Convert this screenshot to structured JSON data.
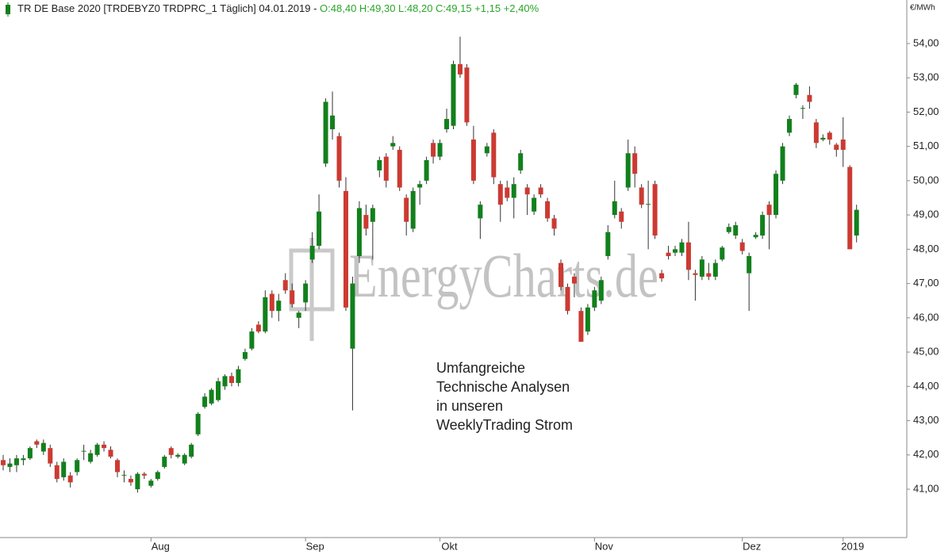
{
  "chart_data": {
    "type": "candlestick",
    "title": "TR DE Base 2020 [TRDEBYZ0 TRDPRC_1 Täglich] 04.01.2019 -",
    "subtitle": "O:48,40 H:49,30 L:48,20 C:49,15 +1,15 +2,40%",
    "y_unit": "€/MWh",
    "watermark": "EnergyCharts.de",
    "annotation": [
      "Umfangreiche",
      "Technische Analysen",
      "in unseren",
      "WeeklyTrading Strom"
    ],
    "categories": [
      null,
      null,
      null,
      null,
      null,
      null,
      null,
      null,
      null,
      null,
      null,
      null,
      null,
      null,
      null,
      null,
      null,
      null,
      null,
      null,
      null,
      null,
      "Aug",
      null,
      null,
      null,
      null,
      null,
      null,
      null,
      null,
      null,
      null,
      null,
      null,
      null,
      null,
      null,
      null,
      null,
      null,
      null,
      null,
      null,
      null,
      "Sep",
      null,
      null,
      null,
      null,
      null,
      null,
      null,
      null,
      null,
      null,
      null,
      null,
      null,
      null,
      null,
      null,
      null,
      null,
      null,
      "Okt",
      null,
      null,
      null,
      null,
      null,
      null,
      null,
      null,
      null,
      null,
      null,
      null,
      null,
      null,
      null,
      null,
      null,
      null,
      null,
      null,
      null,
      null,
      "Nov",
      null,
      null,
      null,
      null,
      null,
      null,
      null,
      null,
      null,
      null,
      null,
      null,
      null,
      null,
      null,
      null,
      null,
      null,
      null,
      null,
      null,
      "Dez",
      null,
      null,
      null,
      null,
      null,
      null,
      null,
      null,
      null,
      null,
      null,
      null,
      null,
      null,
      "2019",
      null,
      null
    ],
    "series": [
      {
        "name": "TR DE Base 2020",
        "up_color": "#12801c",
        "down_color": "#cc3a32",
        "open": [
          41.85,
          41.65,
          41.7,
          41.85,
          41.9,
          42.4,
          42.1,
          42.2,
          41.7,
          41.35,
          41.4,
          41.5,
          42.1,
          41.8,
          42.0,
          42.3,
          42.15,
          41.85,
          41.4,
          41.3,
          41.0,
          41.45,
          41.1,
          41.3,
          41.65,
          42.2,
          41.95,
          41.75,
          41.95,
          42.6,
          43.4,
          43.5,
          43.6,
          44.0,
          44.3,
          44.1,
          44.8,
          45.1,
          45.8,
          45.6,
          46.7,
          46.2,
          47.1,
          46.8,
          46.0,
          46.45,
          47.7,
          48.1,
          50.5,
          51.5,
          51.3,
          49.7,
          45.1,
          47.8,
          49.0,
          48.8,
          50.3,
          50.7,
          51.0,
          50.9,
          49.5,
          48.6,
          49.8,
          50.0,
          51.1,
          50.7,
          51.5,
          51.6,
          53.4,
          53.3,
          51.2,
          48.9,
          50.8,
          51.4,
          49.9,
          49.8,
          49.5,
          50.3,
          49.8,
          49.1,
          49.8,
          49.4,
          48.9,
          47.6,
          46.9,
          47.2,
          46.2,
          45.6,
          46.3,
          46.5,
          47.8,
          49.0,
          49.1,
          49.8,
          50.8,
          49.8,
          49.3,
          49.9,
          47.3,
          47.9,
          47.9,
          47.9,
          48.2,
          47.3,
          47.2,
          47.3,
          47.2,
          47.7,
          48.5,
          48.4,
          48.2,
          47.3,
          48.35,
          48.4,
          49.3,
          49.0,
          50.0,
          51.4,
          52.5,
          52.1,
          52.5,
          51.7,
          51.2,
          51.4,
          51.05,
          51.2,
          50.4,
          48.4
        ],
        "high": [
          42.0,
          41.9,
          42.0,
          42.0,
          42.25,
          42.45,
          42.45,
          42.3,
          41.8,
          41.9,
          41.5,
          41.9,
          42.3,
          42.15,
          42.35,
          42.4,
          42.25,
          41.9,
          41.55,
          41.4,
          41.5,
          41.5,
          41.3,
          41.55,
          42.0,
          42.25,
          42.05,
          42.05,
          42.35,
          43.25,
          43.8,
          43.95,
          44.25,
          44.35,
          44.4,
          44.6,
          45.1,
          45.7,
          45.9,
          46.8,
          46.8,
          46.7,
          47.3,
          47.0,
          46.2,
          47.1,
          48.5,
          49.6,
          52.4,
          52.6,
          51.4,
          50.1,
          47.2,
          49.4,
          49.3,
          49.3,
          50.7,
          50.8,
          51.3,
          51.0,
          49.6,
          49.8,
          50.0,
          50.7,
          51.2,
          51.2,
          52.1,
          53.5,
          54.2,
          53.4,
          51.6,
          49.4,
          51.1,
          51.5,
          50.0,
          50.0,
          50.1,
          50.9,
          49.9,
          49.6,
          49.9,
          49.5,
          49.0,
          47.7,
          47.0,
          47.3,
          46.3,
          46.4,
          46.9,
          47.2,
          48.7,
          50.0,
          49.2,
          51.2,
          51.0,
          49.9,
          50.0,
          50.0,
          47.4,
          48.1,
          48.1,
          48.3,
          48.8,
          47.4,
          47.8,
          47.6,
          47.7,
          48.1,
          48.75,
          48.8,
          48.3,
          47.9,
          48.5,
          49.1,
          49.4,
          50.3,
          51.1,
          51.9,
          52.85,
          52.2,
          52.75,
          51.8,
          51.35,
          51.45,
          51.1,
          51.85,
          50.45,
          49.3
        ],
        "low": [
          41.55,
          41.5,
          41.5,
          41.7,
          41.85,
          42.2,
          42.0,
          41.65,
          41.2,
          41.25,
          41.05,
          41.4,
          41.85,
          41.75,
          41.95,
          42.1,
          41.9,
          41.35,
          41.2,
          41.1,
          40.9,
          41.3,
          41.05,
          41.25,
          41.6,
          41.9,
          41.9,
          41.7,
          41.9,
          42.55,
          43.35,
          43.45,
          43.55,
          43.9,
          44.0,
          44.0,
          44.75,
          45.05,
          45.55,
          45.55,
          46.0,
          45.9,
          46.7,
          46.3,
          45.7,
          46.2,
          47.6,
          48.0,
          50.4,
          51.2,
          49.8,
          46.2,
          43.3,
          47.6,
          48.4,
          47.7,
          50.1,
          49.8,
          50.9,
          49.7,
          48.4,
          48.5,
          49.3,
          49.9,
          50.5,
          50.6,
          51.4,
          51.5,
          53.0,
          51.6,
          49.9,
          48.3,
          50.7,
          49.9,
          48.8,
          49.4,
          48.9,
          50.2,
          49.0,
          49.0,
          49.5,
          48.8,
          48.4,
          46.8,
          46.1,
          46.6,
          45.3,
          45.5,
          46.2,
          46.4,
          47.7,
          48.9,
          48.6,
          49.7,
          49.8,
          49.2,
          48.0,
          48.3,
          47.05,
          47.7,
          47.8,
          47.8,
          47.1,
          46.5,
          47.1,
          47.1,
          47.1,
          47.65,
          48.45,
          48.3,
          47.85,
          46.2,
          48.3,
          48.3,
          48.0,
          48.9,
          49.9,
          51.3,
          52.4,
          51.8,
          52.1,
          50.95,
          51.15,
          51.05,
          50.7,
          50.4,
          48.0,
          48.2
        ],
        "close": [
          41.7,
          41.75,
          41.9,
          41.9,
          42.2,
          42.3,
          42.35,
          41.75,
          41.3,
          41.8,
          41.2,
          41.85,
          42.12,
          42.05,
          42.3,
          42.2,
          41.95,
          41.5,
          41.42,
          41.2,
          41.45,
          41.4,
          41.25,
          41.5,
          41.95,
          42.0,
          42.0,
          42.0,
          42.3,
          43.2,
          43.7,
          43.9,
          44.15,
          44.3,
          44.1,
          44.5,
          45.0,
          45.6,
          45.6,
          46.6,
          46.2,
          46.5,
          46.8,
          46.4,
          46.15,
          47.0,
          48.1,
          49.1,
          52.3,
          51.9,
          50.0,
          46.3,
          47.0,
          49.2,
          48.6,
          49.2,
          50.6,
          50.0,
          51.1,
          49.8,
          48.8,
          49.7,
          49.9,
          50.6,
          50.7,
          51.1,
          51.8,
          53.4,
          53.1,
          51.7,
          50.0,
          49.3,
          51.0,
          50.1,
          49.3,
          49.5,
          49.9,
          50.8,
          49.6,
          49.5,
          49.6,
          48.9,
          48.6,
          46.9,
          46.2,
          47.0,
          45.3,
          46.3,
          46.8,
          47.1,
          48.5,
          49.4,
          48.8,
          50.8,
          50.2,
          49.3,
          49.32,
          48.4,
          47.15,
          47.8,
          48.0,
          48.2,
          47.4,
          47.25,
          47.7,
          47.2,
          47.6,
          48.05,
          48.65,
          48.7,
          47.95,
          47.8,
          48.42,
          49.0,
          49.0,
          50.2,
          51.0,
          51.8,
          52.8,
          52.12,
          52.3,
          51.1,
          51.25,
          51.2,
          50.9,
          50.9,
          48.0,
          49.15
        ]
      }
    ],
    "ylim": [
      39.59,
      55.27
    ],
    "yticks": [
      {
        "value": 41,
        "label": "41,00"
      },
      {
        "value": 42,
        "label": "42,00"
      },
      {
        "value": 43,
        "label": "43,00"
      },
      {
        "value": 44,
        "label": "44,00"
      },
      {
        "value": 45,
        "label": "45,00"
      },
      {
        "value": 46,
        "label": "46,00"
      },
      {
        "value": 47,
        "label": "47,00"
      },
      {
        "value": 48,
        "label": "48,00"
      },
      {
        "value": 49,
        "label": "49,00"
      },
      {
        "value": 50,
        "label": "50,00"
      },
      {
        "value": 51,
        "label": "51,00"
      },
      {
        "value": 52,
        "label": "52,00"
      },
      {
        "value": 53,
        "label": "53,00"
      },
      {
        "value": 54,
        "label": "54,00"
      }
    ],
    "grid": false
  }
}
